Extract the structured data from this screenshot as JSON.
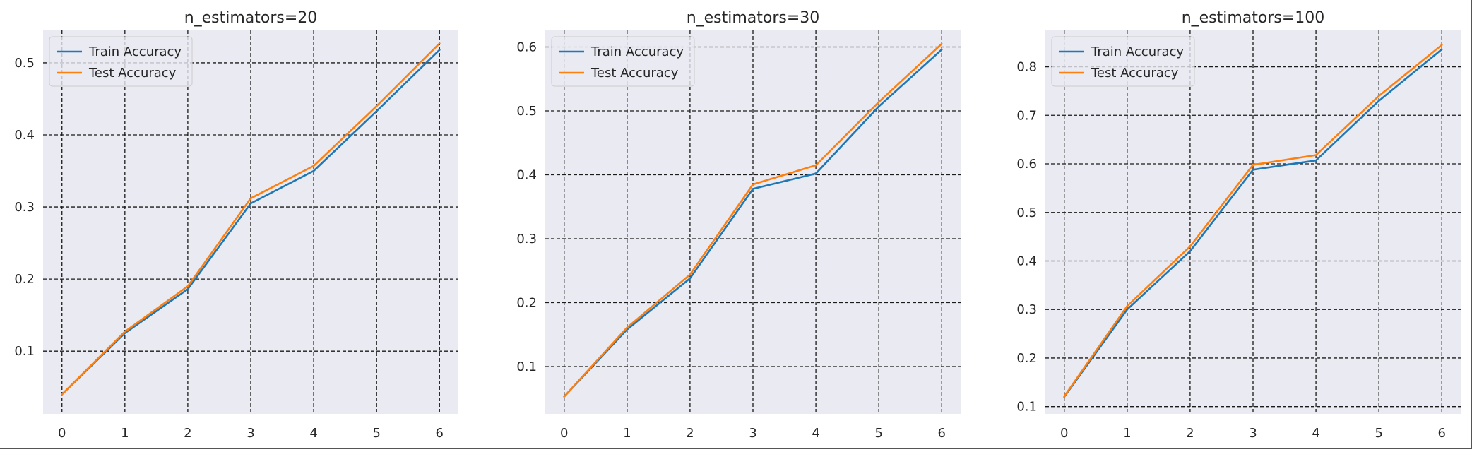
{
  "colors": {
    "panel_background": "#eaeaf2",
    "grid": "#1a1a1a",
    "text": "#262626",
    "train": "#1f77b4",
    "test": "#ff7f0e"
  },
  "chart_data": [
    {
      "type": "line",
      "title": "n_estimators=20",
      "xlabel": "",
      "ylabel": "",
      "x": [
        0,
        1,
        2,
        3,
        4,
        5,
        6
      ],
      "x_ticks": [
        0,
        1,
        2,
        3,
        4,
        5,
        6
      ],
      "xlim": [
        -0.3,
        6.3
      ],
      "y_ticks": [
        0.1,
        0.2,
        0.3,
        0.4,
        0.5
      ],
      "ylim": [
        0.013,
        0.545
      ],
      "grid": true,
      "legend_position": "upper-left",
      "series": [
        {
          "name": "Train Accuracy",
          "color": "#1f77b4",
          "values": [
            0.04,
            0.125,
            0.186,
            0.305,
            0.35,
            0.433,
            0.518
          ]
        },
        {
          "name": "Test Accuracy",
          "color": "#ff7f0e",
          "values": [
            0.04,
            0.127,
            0.19,
            0.312,
            0.357,
            0.44,
            0.527
          ]
        }
      ]
    },
    {
      "type": "line",
      "title": "n_estimators=30",
      "xlabel": "",
      "ylabel": "",
      "x": [
        0,
        1,
        2,
        3,
        4,
        5,
        6
      ],
      "x_ticks": [
        0,
        1,
        2,
        3,
        4,
        5,
        6
      ],
      "xlim": [
        -0.3,
        6.3
      ],
      "y_ticks": [
        0.1,
        0.2,
        0.3,
        0.4,
        0.5,
        0.6
      ],
      "ylim": [
        0.026,
        0.626
      ],
      "grid": true,
      "legend_position": "upper-left",
      "series": [
        {
          "name": "Train Accuracy",
          "color": "#1f77b4",
          "values": [
            0.053,
            0.158,
            0.238,
            0.378,
            0.402,
            0.507,
            0.596
          ]
        },
        {
          "name": "Test Accuracy",
          "color": "#ff7f0e",
          "values": [
            0.053,
            0.161,
            0.244,
            0.385,
            0.415,
            0.514,
            0.605
          ]
        }
      ]
    },
    {
      "type": "line",
      "title": "n_estimators=100",
      "xlabel": "",
      "ylabel": "",
      "x": [
        0,
        1,
        2,
        3,
        4,
        5,
        6
      ],
      "x_ticks": [
        0,
        1,
        2,
        3,
        4,
        5,
        6
      ],
      "xlim": [
        -0.3,
        6.3
      ],
      "y_ticks": [
        0.1,
        0.2,
        0.3,
        0.4,
        0.5,
        0.6,
        0.7,
        0.8
      ],
      "ylim": [
        0.085,
        0.875
      ],
      "grid": true,
      "legend_position": "upper-left",
      "series": [
        {
          "name": "Train Accuracy",
          "color": "#1f77b4",
          "values": [
            0.12,
            0.3,
            0.42,
            0.588,
            0.607,
            0.73,
            0.836
          ]
        },
        {
          "name": "Test Accuracy",
          "color": "#ff7f0e",
          "values": [
            0.121,
            0.307,
            0.43,
            0.598,
            0.618,
            0.74,
            0.845
          ]
        }
      ]
    }
  ]
}
